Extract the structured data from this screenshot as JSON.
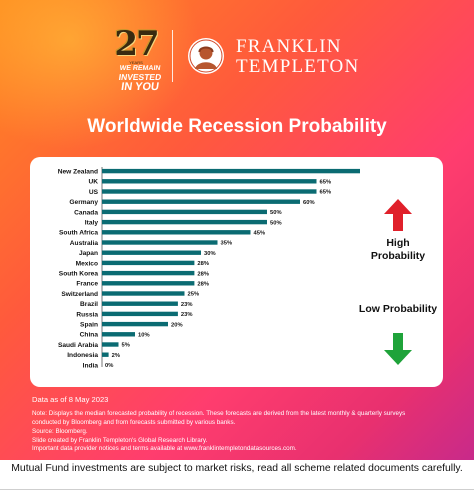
{
  "branding": {
    "anniversary_number": "27",
    "anniversary_small": "YEARS",
    "tagline_line1": "WE REMAIN",
    "tagline_line2": "INVESTED",
    "tagline_line3": "IN YOU",
    "company_line1": "FRANKLIN",
    "company_line2": "TEMPLETON"
  },
  "colors": {
    "bar": "#0b6b72",
    "arrow_up": "#e0202a",
    "arrow_down": "#1fa33a"
  },
  "legend": {
    "high": "High Probability",
    "low": "Low Probability",
    "high_icon": "arrow-up-icon",
    "low_icon": "arrow-down-icon"
  },
  "chart_data": {
    "type": "bar",
    "orientation": "horizontal",
    "title": "Worldwide Recession Probability",
    "categories": [
      "New Zealand",
      "UK",
      "US",
      "Germany",
      "Canada",
      "Italy",
      "South Africa",
      "Australia",
      "Japan",
      "Mexico",
      "South Korea",
      "France",
      "Switzerland",
      "Brazil",
      "Russia",
      "Spain",
      "China",
      "Saudi Arabia",
      "Indonesia",
      "India"
    ],
    "values": [
      80,
      65,
      65,
      60,
      50,
      50,
      45,
      35,
      30,
      28,
      28,
      28,
      25,
      23,
      23,
      20,
      10,
      5,
      2,
      0
    ],
    "value_labels": [
      "80%",
      "65%",
      "65%",
      "60%",
      "50%",
      "50%",
      "45%",
      "35%",
      "30%",
      "28%",
      "28%",
      "28%",
      "25%",
      "23%",
      "23%",
      "20%",
      "10%",
      "5%",
      "2%",
      "0%"
    ],
    "xlim": [
      0,
      80
    ],
    "grid": false
  },
  "notes": {
    "as_of": "Data as of 8 May 2023",
    "line1": "Note: Displays the median forecasted probability of recession. These forecasts are derived from the latest monthly & quarterly surveys",
    "line2": "conducted by Bloomberg and from forecasts submitted by various banks.",
    "line3": "Source: Bloomberg.",
    "line4": "Slide created by Franklin Templeton's Global Research Library.",
    "line5": "Important data provider notices and terms available at www.franklintempletondatasources.com."
  },
  "disclaimer": "Mutual Fund investments are subject to market risks, read all scheme related documents carefully."
}
